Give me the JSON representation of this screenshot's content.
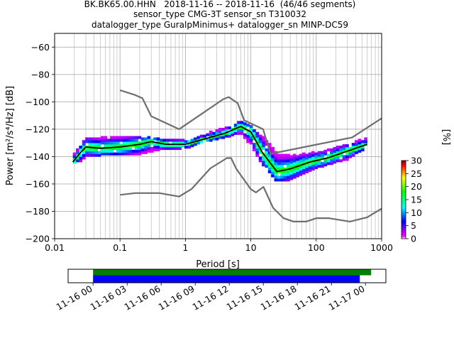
{
  "header": {
    "line1": "BK.BK65.00.HHN   2018-11-16 -- 2018-11-16  (46/46 segments)",
    "line2": "sensor_type CMG-3T sensor_sn T310032",
    "line3": "datalogger_type GuralpMinimus+ datalogger_sn MINP-DC59"
  },
  "chart_data": [
    {
      "type": "heatmap",
      "title": "BK.BK65.00.HHN   2018-11-16 -- 2018-11-16  (46/46 segments)",
      "xlabel": "Period [s]",
      "ylabel": "Power [m²/s⁴/Hz] [dB]",
      "x_scale": "log",
      "xlim": [
        0.01,
        1000
      ],
      "ylim": [
        -200,
        -50
      ],
      "x_ticks": [
        0.01,
        0.1,
        1,
        10,
        100,
        1000
      ],
      "x_tick_labels": [
        "0.01",
        "0.1",
        "1",
        "10",
        "100",
        "1000"
      ],
      "y_ticks": [
        -200,
        -180,
        -160,
        -140,
        -120,
        -100,
        -80,
        -60
      ],
      "y_tick_labels": [
        "−200",
        "−180",
        "−160",
        "−140",
        "−120",
        "−100",
        "−80",
        "−60"
      ],
      "grid": true,
      "colorbar": {
        "label": "[%]",
        "range": [
          0,
          30
        ],
        "ticks": [
          0,
          5,
          10,
          15,
          20,
          25,
          30
        ],
        "tick_labels": [
          "0",
          "5",
          "10",
          "15",
          "20",
          "25",
          "30"
        ],
        "colors": [
          "#ffffff",
          "#ff00ff",
          "#0000ff",
          "#00ffff",
          "#00ff00",
          "#ffff00",
          "#ff0000",
          "#800000"
        ]
      },
      "psd_spread": [
        {
          "period": 0.019,
          "lo": -145,
          "hi": -139
        },
        {
          "period": 0.025,
          "lo": -143,
          "hi": -132
        },
        {
          "period": 0.03,
          "lo": -140,
          "hi": -127
        },
        {
          "period": 0.05,
          "lo": -139,
          "hi": -126
        },
        {
          "period": 0.1,
          "lo": -139,
          "hi": -126
        },
        {
          "period": 0.2,
          "lo": -138,
          "hi": -126
        },
        {
          "period": 0.4,
          "lo": -135,
          "hi": -128
        },
        {
          "period": 1,
          "lo": -134,
          "hi": -129
        },
        {
          "period": 2,
          "lo": -129,
          "hi": -124
        },
        {
          "period": 4,
          "lo": -126,
          "hi": -120
        },
        {
          "period": 7,
          "lo": -123,
          "hi": -115
        },
        {
          "period": 10,
          "lo": -132,
          "hi": -118
        },
        {
          "period": 15,
          "lo": -146,
          "hi": -126
        },
        {
          "period": 25,
          "lo": -158,
          "hi": -138
        },
        {
          "period": 40,
          "lo": -157,
          "hi": -140
        },
        {
          "period": 80,
          "lo": -150,
          "hi": -138
        },
        {
          "period": 150,
          "lo": -146,
          "hi": -136
        },
        {
          "period": 300,
          "lo": -142,
          "hi": -132
        },
        {
          "period": 600,
          "lo": -133,
          "hi": -127
        }
      ],
      "mode_line": {
        "period": [
          0.019,
          0.025,
          0.03,
          0.05,
          0.1,
          0.2,
          0.3,
          0.5,
          1,
          2,
          4,
          7,
          10,
          15,
          25,
          40,
          80,
          150,
          300,
          600
        ],
        "power": [
          -144,
          -137,
          -133,
          -134,
          -133,
          -131,
          -129,
          -131,
          -131,
          -127,
          -123,
          -118,
          -122,
          -137,
          -151,
          -149,
          -144,
          -141,
          -136,
          -131
        ]
      },
      "noise_models": [
        {
          "period": [
            0.1,
            0.17,
            0.22,
            0.3,
            0.8,
            3.8,
            4.6,
            6.3,
            7.9,
            15.4,
            20,
            354.8,
            1000
          ],
          "power": [
            -91.5,
            -95,
            -97.4,
            -110.5,
            -120,
            -98,
            -96.5,
            -101,
            -113.5,
            -120,
            -138,
            -126,
            -112
          ]
        },
        {
          "period": [
            0.1,
            0.17,
            0.4,
            0.8,
            1.24,
            2.4,
            4.3,
            5,
            6,
            10,
            12,
            15.6,
            21.9,
            31.6,
            45,
            70,
            101,
            154,
            328,
            600,
            1000
          ],
          "power": [
            -168,
            -166.7,
            -166.7,
            -169.2,
            -163.7,
            -148.6,
            -141.1,
            -141.1,
            -149,
            -163.8,
            -166.2,
            -162.1,
            -177.5,
            -185,
            -187.5,
            -187.5,
            -185,
            -185,
            -187.5,
            -184.4,
            -178
          ]
        }
      ]
    },
    {
      "type": "bar",
      "description": "data coverage",
      "x_tick_labels": [
        "11-16 00",
        "11-16 03",
        "11-16 06",
        "11-16 09",
        "11-16 12",
        "11-16 15",
        "11-16 18",
        "11-16 21",
        "11-17 00"
      ],
      "xlim_hours": [
        -2.2,
        25.8
      ],
      "series": [
        {
          "name": "",
          "color": "#008000",
          "start_hour": 0,
          "end_hour": 24.5
        },
        {
          "name": "",
          "color": "#0000ff",
          "start_hour": 0,
          "end_hour": 23.5
        }
      ]
    }
  ]
}
